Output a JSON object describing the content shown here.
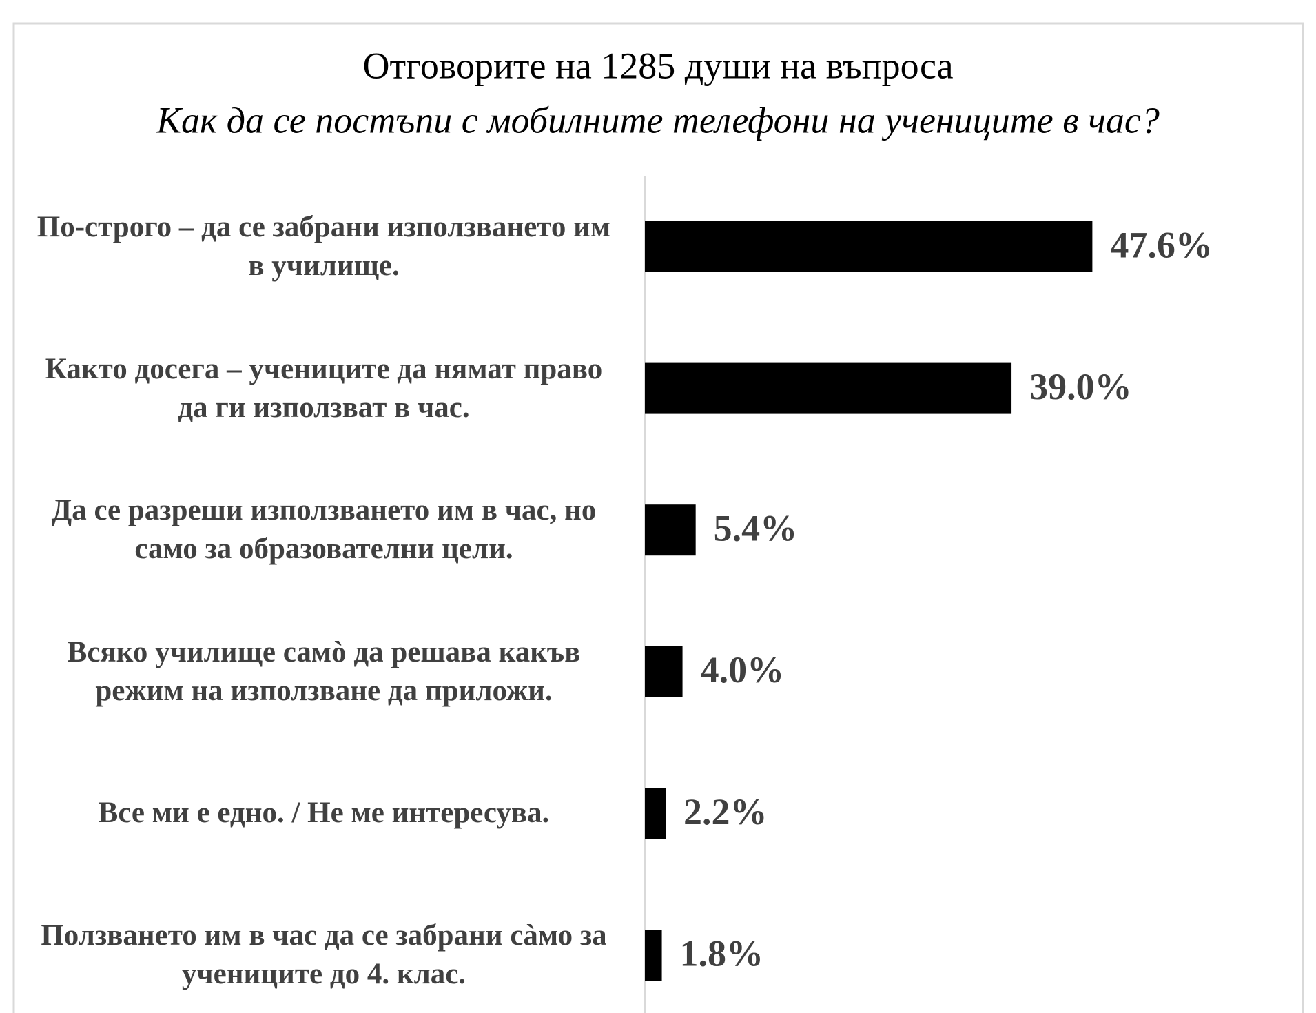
{
  "chart_data": {
    "type": "barh",
    "title": "Отговорите на 1285 души на въпроса",
    "subtitle": "Как да се постъпи с мобилните телефони на учениците в час?",
    "categories": [
      "По-строго – да се забрани използването им в училище.",
      "Както досега – учениците да нямат право да ги използват в час.",
      "Да се разреши използването им в час, но само за образователни цели.",
      "Всяко училище самò да решава какъв режим на използване да приложи.",
      "Все ми е едно. / Не ме интересува.",
      "Ползването им в час да се забрани сàмо за учениците до 4. клас."
    ],
    "values": [
      47.6,
      39.0,
      5.4,
      4.0,
      2.2,
      1.8
    ],
    "value_labels": [
      "47.6%",
      "39.0%",
      "5.4%",
      "4.0%",
      "2.2%",
      "1.8%"
    ],
    "color": "#000000",
    "xlim": [
      0,
      70
    ]
  }
}
